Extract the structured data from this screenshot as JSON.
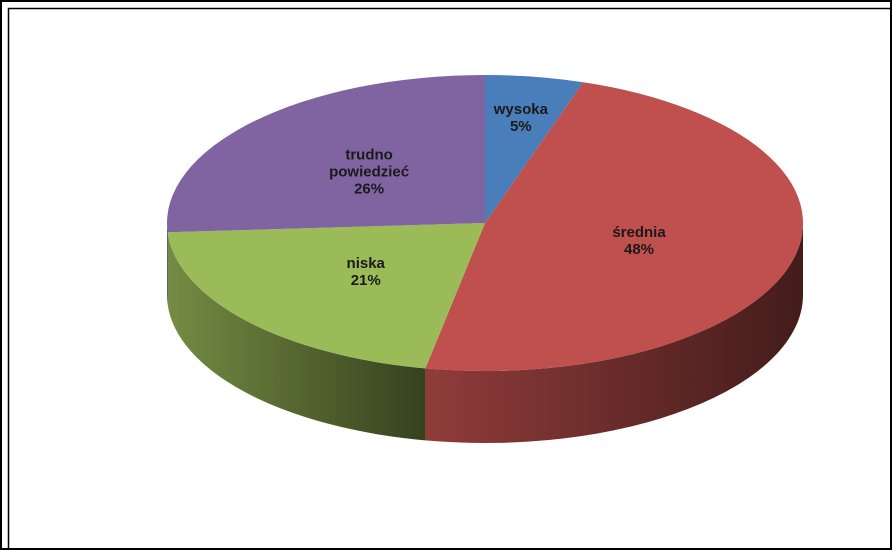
{
  "chart_data": {
    "type": "pie",
    "categories": [
      "wysoka",
      "średnia",
      "niska",
      "trudno powiedzieć"
    ],
    "values": [
      5,
      48,
      21,
      26
    ],
    "value_labels": [
      "5%",
      "48%",
      "21%",
      "26%"
    ],
    "colors": [
      "#4a7ebb",
      "#c0504d",
      "#9bbb59",
      "#8064a2"
    ],
    "three_d": true
  }
}
